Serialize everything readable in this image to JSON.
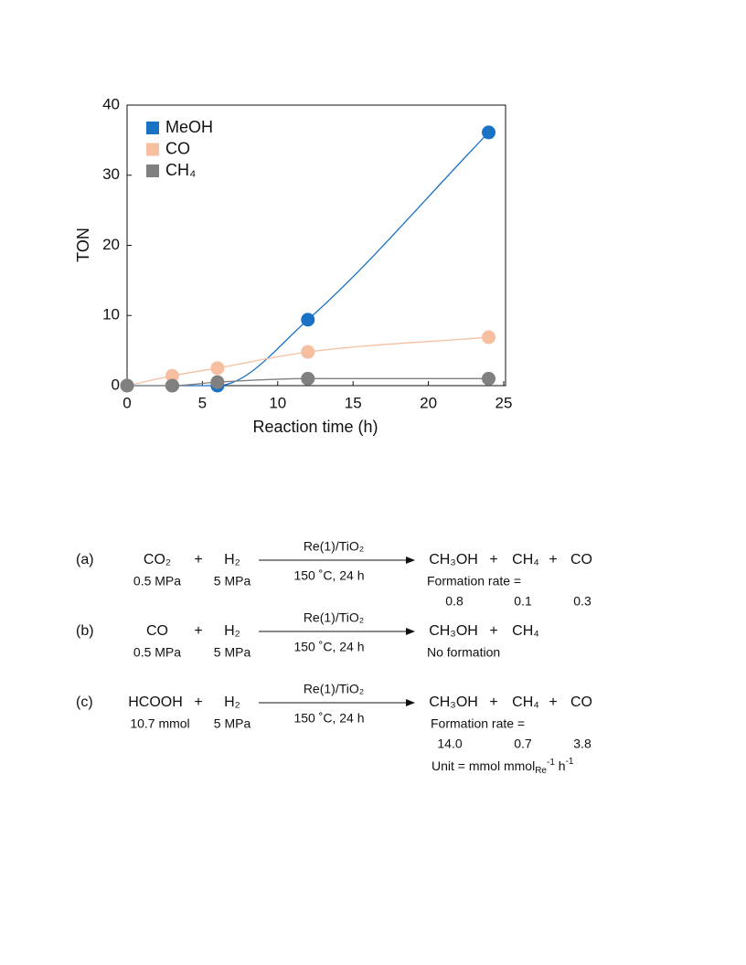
{
  "chart_data": {
    "type": "scatter",
    "xlabel": "Reaction time (h)",
    "ylabel": "TON",
    "xlim": [
      0,
      25
    ],
    "xticks": [
      0,
      5,
      10,
      15,
      20,
      25
    ],
    "ylim": [
      0,
      40
    ],
    "yticks": [
      0,
      10,
      20,
      30,
      40
    ],
    "legend": "upper left",
    "series": [
      {
        "name": "MeOH",
        "color": "#1a72c4",
        "x": [
          0,
          3,
          6,
          12,
          24
        ],
        "values": [
          0,
          0,
          0,
          9.4,
          36.1
        ]
      },
      {
        "name": "CO",
        "color": "#f5bfa0",
        "x": [
          0,
          3,
          6,
          12,
          24
        ],
        "values": [
          0,
          1.4,
          2.5,
          4.8,
          6.9
        ]
      },
      {
        "name": "CH₄",
        "color": "#808080",
        "x": [
          0,
          3,
          6,
          12,
          24
        ],
        "values": [
          0,
          0,
          0.5,
          1.0,
          1.0
        ]
      }
    ]
  },
  "plus": "+",
  "reactions": [
    {
      "label": "(a)",
      "reactants": [
        {
          "formula": "CO₂",
          "amount": "0.5 MPa"
        },
        {
          "formula": "H₂",
          "amount": "5 MPa"
        }
      ],
      "catalyst": "Re(1)/TiO₂",
      "conditions": "150 ˚C, 24 h",
      "products": [
        "CH₃OH",
        "CH₄",
        "CO"
      ],
      "note": "Formation rate =",
      "rates": [
        "0.8",
        "0.1",
        "0.3"
      ]
    },
    {
      "label": "(b)",
      "reactants": [
        {
          "formula": "CO",
          "amount": "0.5 MPa"
        },
        {
          "formula": "H₂",
          "amount": "5 MPa"
        }
      ],
      "catalyst": "Re(1)/TiO₂",
      "conditions": "150 ˚C, 24 h",
      "products": [
        "CH₃OH",
        "CH₄"
      ],
      "note": "No formation",
      "rates": []
    },
    {
      "label": "(c)",
      "reactants": [
        {
          "formula": "HCOOH",
          "amount": "10.7 mmol"
        },
        {
          "formula": "H₂",
          "amount": "5 MPa"
        }
      ],
      "catalyst": "Re(1)/TiO₂",
      "conditions": "150 ˚C, 24 h",
      "products": [
        "CH₃OH",
        "CH₄",
        "CO"
      ],
      "note": "Formation rate =",
      "rates": [
        "14.0",
        "0.7",
        "3.8"
      ]
    }
  ],
  "unit": {
    "text": "Unit = mmol mmol",
    "sub": "Re",
    "sup1": "-1",
    "mid": " h",
    "sup2": "-1"
  }
}
